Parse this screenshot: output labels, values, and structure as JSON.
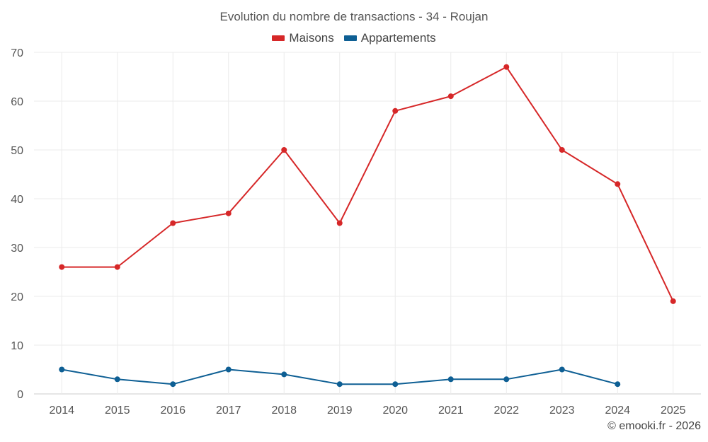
{
  "chart_data": {
    "type": "line",
    "title": "Evolution du nombre de transactions - 34 - Roujan",
    "xlabel": "",
    "ylabel": "",
    "categories": [
      "2014",
      "2015",
      "2016",
      "2017",
      "2018",
      "2019",
      "2020",
      "2021",
      "2022",
      "2023",
      "2024",
      "2025"
    ],
    "ylim": [
      0,
      70
    ],
    "yticks": [
      0,
      10,
      20,
      30,
      40,
      50,
      60,
      70
    ],
    "grid": true,
    "legend_position": "top-center",
    "series": [
      {
        "name": "Maisons",
        "color": "#d62728",
        "values": [
          26,
          26,
          35,
          37,
          50,
          35,
          58,
          61,
          67,
          50,
          43,
          19
        ]
      },
      {
        "name": "Appartements",
        "color": "#0e5f94",
        "values": [
          5,
          3,
          2,
          5,
          4,
          2,
          2,
          3,
          3,
          5,
          2,
          null
        ]
      }
    ]
  },
  "credit": "© emooki.fr - 2026"
}
